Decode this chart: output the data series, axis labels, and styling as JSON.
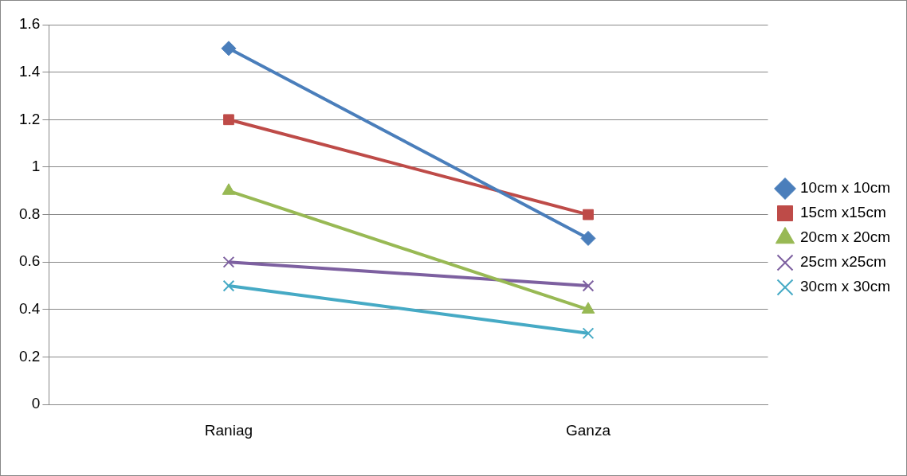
{
  "chart_data": {
    "type": "line",
    "categories": [
      "Raniag",
      "Ganza"
    ],
    "series": [
      {
        "name": "10cm x 10cm",
        "color": "#4a7ebb",
        "values": [
          1.5,
          0.7
        ],
        "marker": "diamond"
      },
      {
        "name": "15cm x15cm",
        "color": "#be4b48",
        "values": [
          1.2,
          0.8
        ],
        "marker": "square"
      },
      {
        "name": "20cm x 20cm",
        "color": "#98b954",
        "values": [
          0.9,
          0.4
        ],
        "marker": "triangle"
      },
      {
        "name": "25cm x25cm",
        "color": "#7d60a0",
        "values": [
          0.6,
          0.5
        ],
        "marker": "cross"
      },
      {
        "name": "30cm x 30cm",
        "color": "#46aac5",
        "values": [
          0.5,
          0.3
        ],
        "marker": "cross"
      }
    ],
    "ylim": [
      0,
      1.6
    ],
    "yticks": [
      0,
      0.2,
      0.4,
      0.6,
      0.8,
      1,
      1.2,
      1.4,
      1.6
    ],
    "grid": "y",
    "legend": "right",
    "line_style": "solid"
  }
}
